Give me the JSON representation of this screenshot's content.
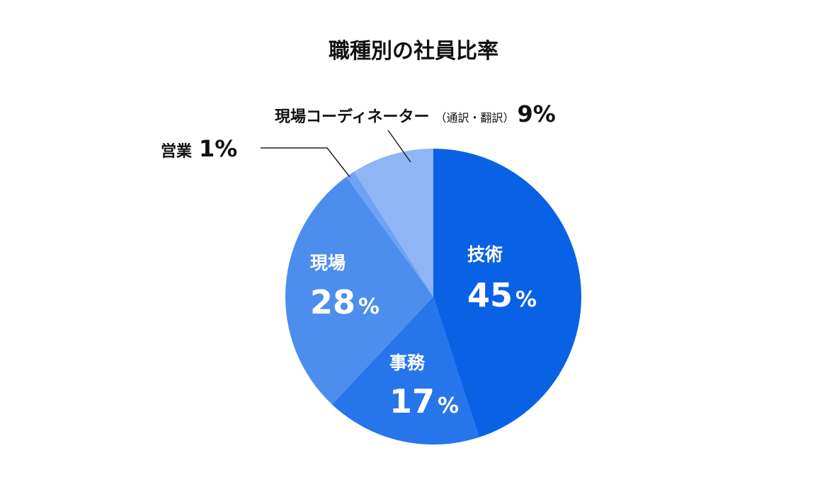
{
  "chart_data": {
    "type": "pie",
    "title": "職種別の社員比率",
    "slices": [
      {
        "label": "技術",
        "note": "",
        "value": 45,
        "display": "45",
        "unit": "%",
        "color": "#0962E6"
      },
      {
        "label": "事務",
        "note": "",
        "value": 17,
        "display": "17",
        "unit": "%",
        "color": "#2775EA"
      },
      {
        "label": "現場",
        "note": "",
        "value": 28,
        "display": "28",
        "unit": "%",
        "color": "#4D8DEE"
      },
      {
        "label": "営業",
        "note": "",
        "value": 1,
        "display": "1",
        "unit": "%",
        "color": "#6EA2F2"
      },
      {
        "label": "現場コーディネーター",
        "note": "（通訳・翻訳）",
        "value": 9,
        "display": "9",
        "unit": "%",
        "color": "#8FB5F5"
      }
    ]
  }
}
